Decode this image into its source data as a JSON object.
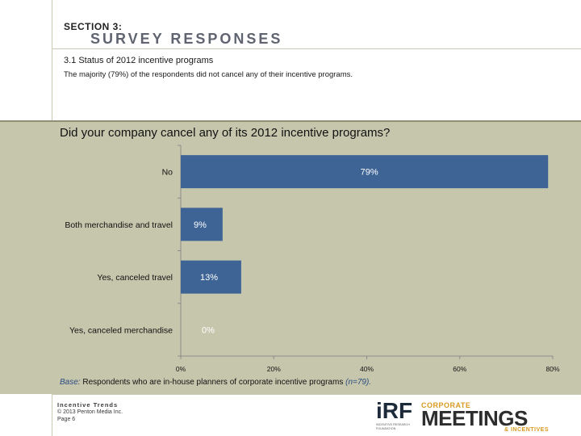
{
  "header": {
    "section_label": "SECTION 3:",
    "section_title": "SURVEY RESPONSES",
    "subheading": "3.1 Status of 2012 incentive programs",
    "summary": "The majority (79%) of the respondents did not cancel any of their incentive programs."
  },
  "chart_data": {
    "type": "bar",
    "orientation": "horizontal",
    "title": "Did your company cancel any of its 2012 incentive programs?",
    "categories": [
      "No",
      "Both merchandise and travel",
      "Yes, canceled travel",
      "Yes, canceled merchandise"
    ],
    "values": [
      79,
      9,
      13,
      0
    ],
    "data_labels": [
      "79%",
      "9%",
      "13%",
      "0%"
    ],
    "xlim": [
      0,
      80
    ],
    "x_ticks": [
      0,
      20,
      40,
      60,
      80
    ],
    "x_tick_labels": [
      "0%",
      "20%",
      "40%",
      "60%",
      "80%"
    ],
    "grid": false,
    "bar_color": "#3e6496",
    "label_color": "#ffffff"
  },
  "base_note": {
    "prefix": "Base:",
    "text": " Respondents who are in-house planners of corporate incentive programs ",
    "n": "(n=79)."
  },
  "footer": {
    "title": "Incentive Trends",
    "copyright": "© 2013 Penton Media Inc.",
    "page": "Page 6"
  },
  "logos": {
    "irf": "iRF",
    "irf_sub": "INCENTIVE RESEARCH FOUNDATION",
    "corporate": "CORPORATE",
    "meetings": "MEETINGS",
    "incentives": "& INCENTIVES"
  },
  "colors": {
    "panel_bg": "#c6c6ad",
    "bar": "#3e6496",
    "accent": "#d99a22"
  }
}
